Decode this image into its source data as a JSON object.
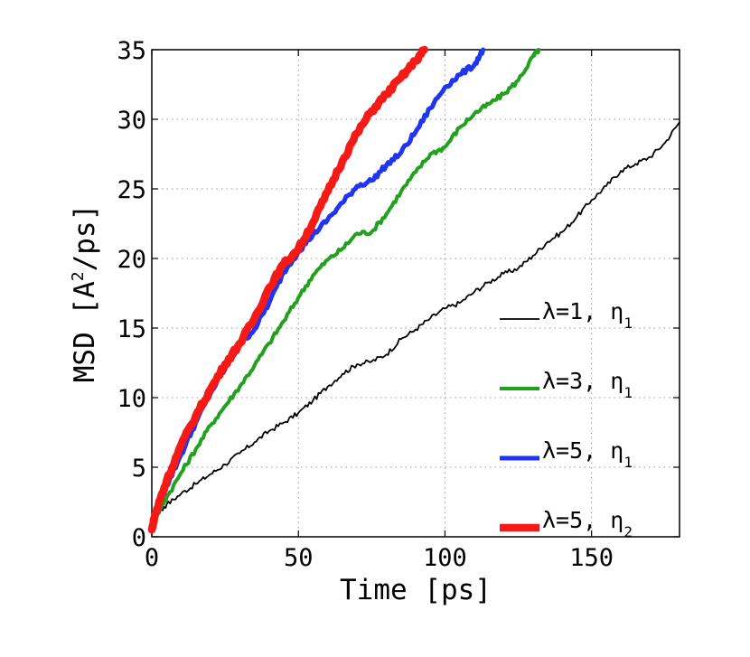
{
  "chart_data": {
    "type": "line",
    "xlabel": "Time [ps]",
    "ylabel": "MSD [A2/ps]",
    "ylabel_parts": {
      "before": "MSD [A",
      "sup": "2",
      "after": "/ps]"
    },
    "xlim": [
      0,
      180
    ],
    "ylim": [
      0,
      35
    ],
    "xticks": [
      "0",
      "50",
      "100",
      "150"
    ],
    "xtick_values": [
      0,
      50,
      100,
      150
    ],
    "yticks": [
      "0",
      "5",
      "10",
      "15",
      "20",
      "25",
      "30",
      "35"
    ],
    "ytick_values": [
      0,
      5,
      10,
      15,
      20,
      25,
      30,
      35
    ],
    "grid": true,
    "legend_position": "lower-right",
    "series": [
      {
        "name": "λ=1, η1",
        "label_main": "λ=1, η",
        "label_sub": "1",
        "color": "#000000",
        "width": 1.8,
        "x": [
          0,
          1,
          3,
          5,
          10,
          15,
          20,
          25,
          30,
          35,
          40,
          45,
          50,
          55,
          60,
          65,
          70,
          75,
          80,
          85,
          90,
          95,
          100,
          105,
          110,
          115,
          120,
          125,
          130,
          135,
          140,
          145,
          150,
          155,
          160,
          165,
          170,
          175,
          180
        ],
        "y": [
          0.5,
          1.2,
          1.9,
          2.3,
          3.1,
          3.8,
          4.5,
          5.2,
          6.0,
          6.8,
          7.6,
          8.2,
          8.9,
          9.8,
          10.8,
          11.7,
          12.4,
          12.6,
          13.1,
          14.2,
          14.9,
          15.7,
          16.4,
          16.8,
          17.6,
          18.3,
          18.9,
          19.3,
          20.2,
          21.2,
          21.9,
          23.0,
          24.2,
          25.2,
          26.3,
          26.8,
          27.3,
          28.3,
          29.8
        ]
      },
      {
        "name": "λ=3, η1",
        "label_main": "λ=3, η",
        "label_sub": "1",
        "color": "#22a11f",
        "width": 4,
        "x": [
          0,
          1,
          3,
          5,
          10,
          15,
          20,
          25,
          30,
          35,
          40,
          45,
          50,
          55,
          60,
          65,
          70,
          75,
          80,
          85,
          90,
          95,
          100,
          105,
          110,
          115,
          120,
          125,
          130,
          132
        ],
        "y": [
          0.5,
          1.3,
          2.1,
          2.8,
          4.6,
          6.3,
          8.0,
          9.4,
          10.8,
          12.3,
          13.9,
          15.5,
          17.2,
          18.8,
          19.9,
          20.7,
          21.8,
          21.9,
          23.2,
          24.8,
          26.2,
          27.5,
          28.0,
          29.4,
          30.4,
          31.1,
          31.8,
          32.8,
          34.5,
          35
        ]
      },
      {
        "name": "λ=5, η1",
        "label_main": "λ=5, η",
        "label_sub": "1",
        "color": "#1f35f0",
        "width": 5,
        "x": [
          0,
          1,
          3,
          5,
          10,
          15,
          20,
          25,
          30,
          35,
          40,
          45,
          50,
          55,
          60,
          65,
          70,
          75,
          80,
          85,
          90,
          95,
          100,
          105,
          110,
          113
        ],
        "y": [
          0.5,
          1.5,
          2.6,
          3.6,
          5.9,
          8.2,
          10.3,
          12.1,
          13.8,
          14.9,
          16.8,
          19.0,
          20.5,
          21.7,
          22.8,
          24.0,
          25.2,
          25.6,
          26.7,
          27.6,
          29.1,
          30.8,
          32.3,
          33.2,
          33.9,
          35
        ]
      },
      {
        "name": "λ=5, η2",
        "label_main": "λ=5, η",
        "label_sub": "2",
        "color": "#f51a15",
        "width": 8.5,
        "x": [
          0,
          1,
          3,
          5,
          10,
          15,
          20,
          25,
          30,
          35,
          40,
          45,
          50,
          55,
          60,
          65,
          70,
          75,
          80,
          85,
          90,
          93
        ],
        "y": [
          0.5,
          1.5,
          2.8,
          4.0,
          6.6,
          8.7,
          10.6,
          12.4,
          13.9,
          15.7,
          17.9,
          19.6,
          20.7,
          22.6,
          24.8,
          27.0,
          29.0,
          30.6,
          31.8,
          33.0,
          34.2,
          35
        ]
      }
    ]
  }
}
